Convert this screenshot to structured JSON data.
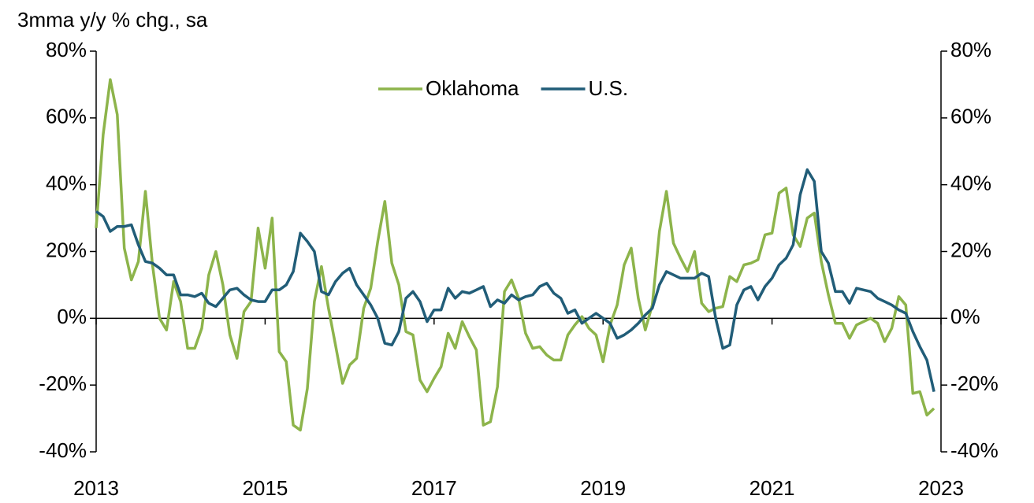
{
  "chart_data": {
    "type": "line",
    "ylabel": "3mma y/y % chg., sa",
    "x": [
      2013,
      2013.083,
      2013.167,
      2013.25,
      2013.333,
      2013.417,
      2013.5,
      2013.583,
      2013.667,
      2013.75,
      2013.833,
      2013.917,
      2014,
      2014.083,
      2014.167,
      2014.25,
      2014.333,
      2014.417,
      2014.5,
      2014.583,
      2014.667,
      2014.75,
      2014.833,
      2014.917,
      2015,
      2015.083,
      2015.167,
      2015.25,
      2015.333,
      2015.417,
      2015.5,
      2015.583,
      2015.667,
      2015.75,
      2015.833,
      2015.917,
      2016,
      2016.083,
      2016.167,
      2016.25,
      2016.333,
      2016.417,
      2016.5,
      2016.583,
      2016.667,
      2016.75,
      2016.833,
      2016.917,
      2017,
      2017.083,
      2017.167,
      2017.25,
      2017.333,
      2017.417,
      2017.5,
      2017.583,
      2017.667,
      2017.75,
      2017.833,
      2017.917,
      2018,
      2018.083,
      2018.167,
      2018.25,
      2018.333,
      2018.417,
      2018.5,
      2018.583,
      2018.667,
      2018.75,
      2018.833,
      2018.917,
      2019,
      2019.083,
      2019.167,
      2019.25,
      2019.333,
      2019.417,
      2019.5,
      2019.583,
      2019.667,
      2019.75,
      2019.833,
      2019.917,
      2020,
      2020.083,
      2020.167,
      2020.25,
      2020.333,
      2020.417,
      2020.5,
      2020.583,
      2020.667,
      2020.75,
      2020.833,
      2020.917,
      2021,
      2021.083,
      2021.167,
      2021.25,
      2021.333,
      2021.417,
      2021.5,
      2021.583,
      2021.667,
      2021.75,
      2021.833,
      2021.917,
      2022,
      2022.083,
      2022.167,
      2022.25,
      2022.333,
      2022.417,
      2022.5,
      2022.583,
      2022.667,
      2022.75,
      2022.833,
      2022.917
    ],
    "series": [
      {
        "name": "Oklahoma",
        "color": "#8db44b",
        "values": [
          27,
          55,
          71.5,
          61,
          21,
          11.5,
          17,
          38,
          16,
          0,
          -3.5,
          11,
          5,
          -9,
          -9,
          -3,
          13,
          20,
          10,
          -5,
          -12,
          2,
          5,
          27,
          15,
          30,
          -10,
          -13,
          -32,
          -33.5,
          -21,
          5,
          15.5,
          3,
          -8,
          -19.5,
          -14,
          -12,
          3,
          9,
          23,
          35,
          16.5,
          10,
          -4,
          -5,
          -18.5,
          -22,
          -18,
          -14.5,
          -4.5,
          -9,
          -1,
          -5.5,
          -9.5,
          -32,
          -31,
          -20.5,
          8,
          11.5,
          6,
          -4.5,
          -9,
          -8.5,
          -11,
          -12.5,
          -12.5,
          -5,
          -2,
          0.5,
          -3,
          -5,
          -13,
          -2,
          4,
          16,
          21,
          6,
          -3.5,
          4,
          26,
          38,
          22.5,
          18,
          14,
          20,
          4.5,
          2,
          3,
          3.5,
          12.5,
          11,
          16,
          16.5,
          17.5,
          25,
          25.5,
          37.5,
          39,
          25,
          21.5,
          30,
          31.5,
          17,
          7,
          -1.5,
          -1.5,
          -6,
          -2,
          -1,
          0,
          -1.5,
          -7,
          -3,
          6.5,
          4,
          -22.5,
          -22,
          -29,
          -27
        ]
      },
      {
        "name": "U.S.",
        "color": "#215d78",
        "values": [
          32,
          30.5,
          26,
          27.5,
          27.5,
          28,
          22,
          17,
          16.5,
          15,
          13,
          13,
          7,
          7,
          6.5,
          7.5,
          4.5,
          3.5,
          6,
          8.5,
          9,
          7,
          5.5,
          5,
          5,
          8.5,
          8.5,
          10,
          14,
          25.5,
          23,
          20,
          8,
          7,
          11,
          13.5,
          15,
          10,
          7,
          4,
          0,
          -7.5,
          -8,
          -4,
          6,
          8,
          5,
          -1,
          2.5,
          2.5,
          9,
          6,
          8,
          7.5,
          8.5,
          9.5,
          3.5,
          5.5,
          4.5,
          7,
          5.5,
          6.5,
          7,
          9.5,
          10.5,
          7.5,
          6,
          1.5,
          2.5,
          -1.5,
          0,
          1.5,
          0,
          -1.5,
          -6,
          -5,
          -3.5,
          -1.5,
          1,
          3,
          10,
          14,
          13,
          12,
          12,
          12,
          13.5,
          12.5,
          0,
          -9,
          -8,
          4,
          8.5,
          9.5,
          5.5,
          9.5,
          12,
          16,
          18,
          22,
          37,
          44.5,
          41,
          20,
          16.5,
          8,
          8,
          4.5,
          9,
          8.5,
          8,
          6,
          5,
          4,
          2.5,
          1.5,
          -4,
          -8.5,
          -12.5,
          -22
        ]
      }
    ],
    "xlim": [
      2013,
      2023
    ],
    "xticks": [
      2013,
      2015,
      2017,
      2019,
      2021,
      2023
    ],
    "ylim": [
      -40,
      80
    ],
    "yticks": [
      {
        "value": -40,
        "label": "-40%"
      },
      {
        "value": -20,
        "label": "-20%"
      },
      {
        "value": 0,
        "label": "0%"
      },
      {
        "value": 20,
        "label": "20%"
      },
      {
        "value": 40,
        "label": "40%"
      },
      {
        "value": 60,
        "label": "60%"
      },
      {
        "value": 80,
        "label": "80%"
      }
    ],
    "y2lim": [
      -40,
      80
    ],
    "y2ticks": [
      {
        "value": -40,
        "label": "-40%"
      },
      {
        "value": -20,
        "label": "-20%"
      },
      {
        "value": 0,
        "label": "0%"
      },
      {
        "value": 20,
        "label": "20%"
      },
      {
        "value": 40,
        "label": "40%"
      },
      {
        "value": 60,
        "label": "60%"
      },
      {
        "value": 80,
        "label": "80%"
      }
    ],
    "legend": "top"
  }
}
